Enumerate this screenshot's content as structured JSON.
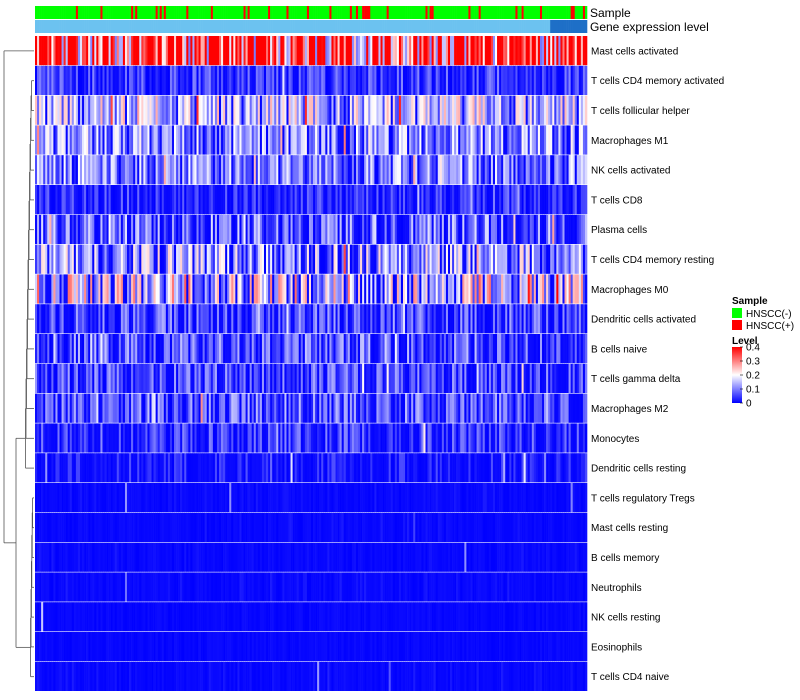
{
  "chart_data": {
    "type": "heatmap",
    "title": "",
    "row_labels": [
      "Mast cells activated",
      "T cells CD4 memory activated",
      "T cells follicular helper",
      "Macrophages M1",
      "NK cells activated",
      "T cells CD8",
      "Plasma cells",
      "T cells CD4 memory resting",
      "Macrophages M0",
      "Dendritic cells activated",
      "B cells naive",
      "T cells gamma delta",
      "Macrophages M2",
      "Monocytes",
      "Dendritic cells resting",
      "T cells regulatory  Tregs",
      "Mast cells resting",
      "B cells memory",
      "Neutrophils",
      "NK cells resting",
      "Eosinophils",
      "T cells CD4 naive"
    ],
    "row_means": [
      0.3,
      0.05,
      0.12,
      0.1,
      0.09,
      0.04,
      0.08,
      0.11,
      0.15,
      0.06,
      0.07,
      0.06,
      0.07,
      0.05,
      0.03,
      0.01,
      0.01,
      0.01,
      0.01,
      0.005,
      0.005,
      0.01
    ],
    "row_sparsity": [
      0.0,
      0.3,
      0.1,
      0.15,
      0.15,
      0.45,
      0.35,
      0.25,
      0.2,
      0.4,
      0.4,
      0.35,
      0.3,
      0.45,
      0.55,
      0.82,
      0.9,
      0.88,
      0.85,
      0.96,
      0.95,
      0.85
    ],
    "n_columns": 270,
    "column_annotations": [
      {
        "name": "Sample",
        "values_summary": "mostly HNSCC(-) with scattered HNSCC(+)",
        "positive_fraction": 0.16
      },
      {
        "name": "Gene expression level",
        "values_summary": "low for most samples, high for the rightmost group",
        "high_fraction": 0.07
      }
    ],
    "legend": {
      "sample": {
        "title": "Sample",
        "items": [
          {
            "label": "HNSCC(-)",
            "color": "#00ff00"
          },
          {
            "label": "HNSCC(+)",
            "color": "#ff0000"
          }
        ]
      },
      "level": {
        "title": "Level",
        "ticks": [
          "0.4",
          "0.3",
          "0.2",
          "0.1",
          "0"
        ],
        "range": [
          0,
          0.4
        ]
      }
    },
    "dendrogram": "rows clustered (left side)"
  },
  "colors": {
    "low": "#0000ff",
    "mid": "#ffffff",
    "high": "#ff0000",
    "hnscc_neg": "#00ff00",
    "hnscc_pos": "#ff0000",
    "expr_low": "#6cc2f0",
    "expr_high": "#1e6fc7"
  }
}
